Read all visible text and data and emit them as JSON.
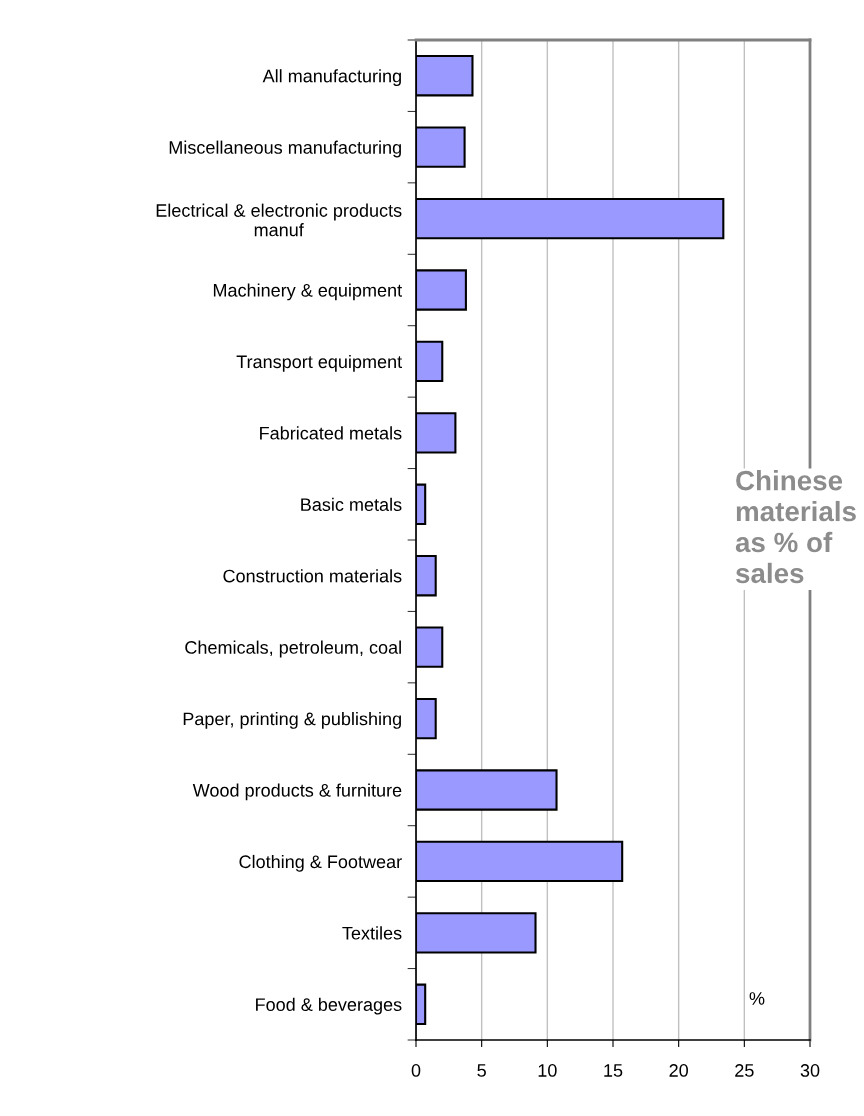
{
  "chart_data": {
    "type": "bar",
    "orientation": "horizontal",
    "categories": [
      "All manufacturing",
      "Miscellaneous manufacturing",
      "Electrical & electronic products\nmanuf",
      "Machinery & equipment",
      "Transport equipment",
      "Fabricated metals",
      "Basic metals",
      "Construction materials",
      "Chemicals, petroleum, coal",
      "Paper, printing & publishing",
      "Wood products & furniture",
      "Clothing & Footwear",
      "Textiles",
      "Food & beverages"
    ],
    "values": [
      4.3,
      3.7,
      23.4,
      3.8,
      2.0,
      3.0,
      0.7,
      1.5,
      2.0,
      1.5,
      10.7,
      15.7,
      9.1,
      0.7
    ],
    "color": "#9999ff",
    "xlim": [
      0,
      30
    ],
    "xticks": [
      0,
      5,
      10,
      15,
      20,
      25,
      30
    ],
    "grid": "x",
    "annotations": [
      "Chinese materials as % of sales",
      "%"
    ]
  }
}
